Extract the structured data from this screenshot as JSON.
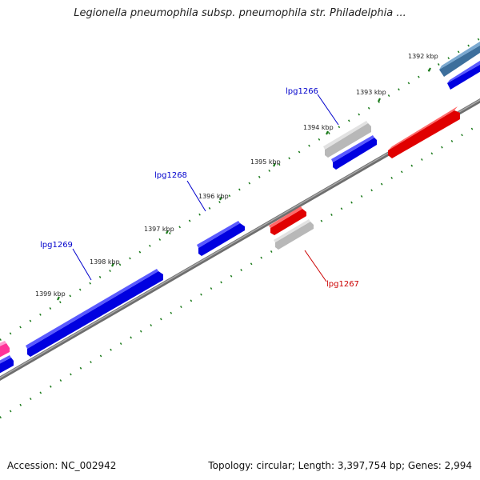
{
  "title": "Legionella pneumophila subsp. pneumophila str. Philadelphia ...",
  "footer": {
    "accession": "Accession: NC_002942",
    "stats": "Topology: circular; Length: 3,397,754 bp; Genes: 2,994"
  },
  "colors": {
    "plus_strand": "#0000ee",
    "minus_strand": "#ee0000",
    "rna": "#b8b8b8",
    "pseudo": "#ff33aa",
    "other": "#4a7fb0",
    "backbone": "#888888",
    "ticks": "#1a7a1a"
  },
  "kbp_labels": [
    "1392 kbp",
    "1393 kbp",
    "1394 kbp",
    "1395 kbp",
    "1396 kbp",
    "1397 kbp",
    "1398 kbp",
    "1399 kbp"
  ],
  "gene_labels": {
    "lpg1266": "lpg1266",
    "lpg1267": "lpg1267",
    "lpg1268": "lpg1268",
    "lpg1269": "lpg1269"
  }
}
